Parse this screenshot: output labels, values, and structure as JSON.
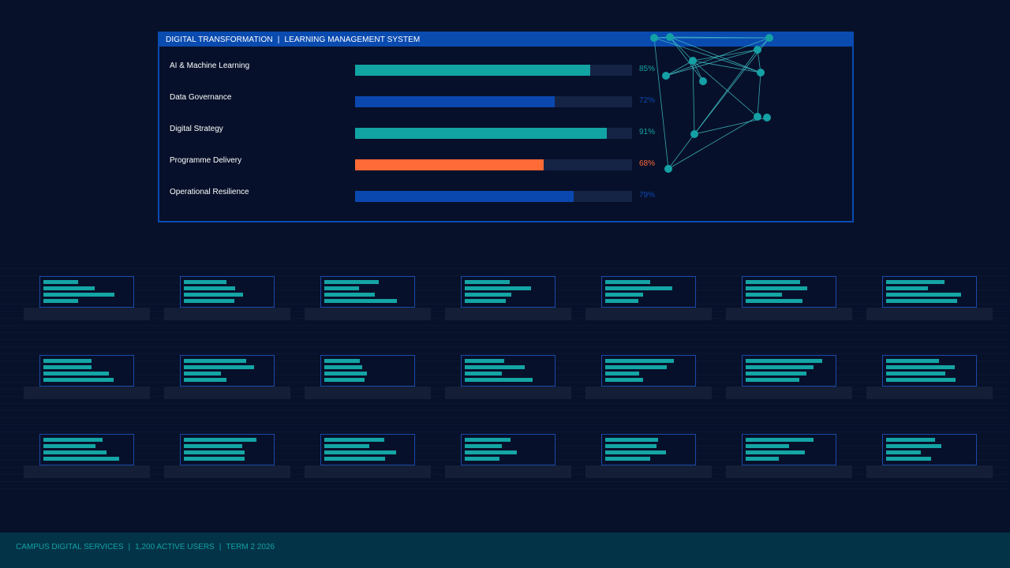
{
  "header": {
    "title_left": "DIGITAL TRANSFORMATION",
    "title_right": "LEARNING MANAGEMENT SYSTEM"
  },
  "skills": [
    {
      "label": "AI & Machine Learning",
      "value": 85,
      "display": "85%",
      "color": "#12a3a3"
    },
    {
      "label": "Data Governance",
      "value": 72,
      "display": "72%",
      "color": "#0a48b0"
    },
    {
      "label": "Digital Strategy",
      "value": 91,
      "display": "91%",
      "color": "#12a3a3"
    },
    {
      "label": "Programme Delivery",
      "value": 68,
      "display": "68%",
      "color": "#ff6a36"
    },
    {
      "label": "Operational Resilience",
      "value": 79,
      "display": "79%",
      "color": "#0a48b0"
    }
  ],
  "network": {
    "node_color": "#14a1a5",
    "edge_color": "#3fc2c8"
  },
  "stations": {
    "rows": 3,
    "cols": 7,
    "bar_color": "#14a5a5",
    "bar_levels": [
      [
        [
          0.4,
          0.59,
          0.82,
          0.4
        ],
        [
          0.49,
          0.59,
          0.68,
          0.58
        ],
        [
          0.63,
          0.4,
          0.58,
          0.84
        ],
        [
          0.52,
          0.76,
          0.54,
          0.47
        ],
        [
          0.52,
          0.77,
          0.44,
          0.38
        ],
        [
          0.63,
          0.71,
          0.42,
          0.65
        ],
        [
          0.67,
          0.48,
          0.86,
          0.82
        ]
      ],
      [
        [
          0.55,
          0.55,
          0.75,
          0.81
        ],
        [
          0.72,
          0.81,
          0.43,
          0.49
        ],
        [
          0.41,
          0.44,
          0.49,
          0.46
        ],
        [
          0.45,
          0.69,
          0.43,
          0.78
        ],
        [
          0.79,
          0.71,
          0.39,
          0.44
        ],
        [
          0.88,
          0.78,
          0.7,
          0.62
        ],
        [
          0.61,
          0.79,
          0.68,
          0.8
        ]
      ],
      [
        [
          0.68,
          0.6,
          0.73,
          0.87
        ],
        [
          0.84,
          0.67,
          0.7,
          0.7
        ],
        [
          0.69,
          0.52,
          0.83,
          0.7
        ],
        [
          0.53,
          0.43,
          0.6,
          0.4
        ],
        [
          0.61,
          0.59,
          0.7,
          0.52
        ],
        [
          0.78,
          0.5,
          0.68,
          0.38
        ],
        [
          0.56,
          0.64,
          0.4,
          0.52
        ]
      ]
    ]
  },
  "footer": {
    "org": "CAMPUS DIGITAL SERVICES",
    "users": "1,200 ACTIVE USERS",
    "term": "TERM 2 2026"
  }
}
